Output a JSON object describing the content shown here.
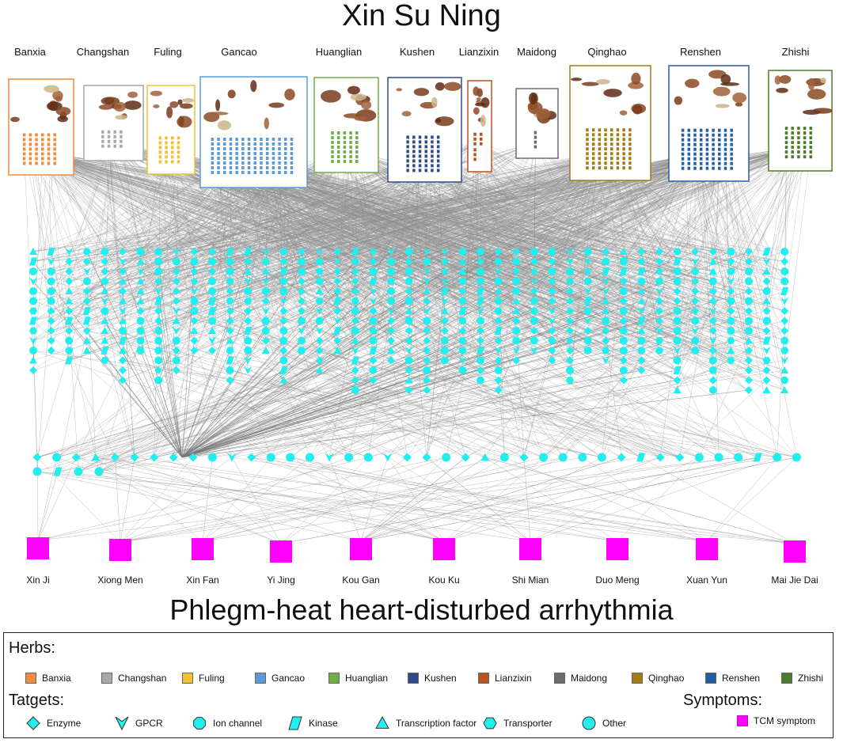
{
  "title": "Xin Su Ning",
  "subtitle": "Phlegm-heat heart-disturbed arrhythmia",
  "herbs": [
    {
      "name": "Banxia",
      "color": "#f08a3c",
      "compounds": 6
    },
    {
      "name": "Changshan",
      "color": "#a9a9a9",
      "compounds": 4
    },
    {
      "name": "Fuling",
      "color": "#f2c12e",
      "compounds": 4
    },
    {
      "name": "Gancao",
      "color": "#5b9bd5",
      "compounds": 14
    },
    {
      "name": "Huanglian",
      "color": "#70ad47",
      "compounds": 5
    },
    {
      "name": "Kushen",
      "color": "#2f4a8a",
      "compounds": 6
    },
    {
      "name": "Lianzixin",
      "color": "#b5541f",
      "compounds": 3
    },
    {
      "name": "Maidong",
      "color": "#6b6b6b",
      "compounds": 1
    },
    {
      "name": "Qinghao",
      "color": "#a07d12",
      "compounds": 8
    },
    {
      "name": "Renshen",
      "color": "#255e9e",
      "compounds": 9
    },
    {
      "name": "Zhishi",
      "color": "#4a7a2c",
      "compounds": 5
    }
  ],
  "symptoms": [
    "Xin Ji",
    "Xiong Men",
    "Xin Fan",
    "Yi Jing",
    "Kou Gan",
    "Kou Ku",
    "Shi Mian",
    "Duo Meng",
    "Xuan Yun",
    "Mai Jie Dai"
  ],
  "legend": {
    "herbs_heading": "Herbs:",
    "targets_heading": "Tatgets:",
    "symptoms_heading": "Symptoms:",
    "targets": [
      {
        "label": "Enzyme",
        "shape": "diamond"
      },
      {
        "label": "GPCR",
        "shape": "vee"
      },
      {
        "label": "Ion channel",
        "shape": "octagon"
      },
      {
        "label": "Kinase",
        "shape": "parallelogram"
      },
      {
        "label": "Transcription factor",
        "shape": "triangle"
      },
      {
        "label": "Transporter",
        "shape": "hexagon"
      },
      {
        "label": "Other",
        "shape": "circle"
      }
    ],
    "symptom_label": "TCM symptom"
  },
  "colors": {
    "target_node": "#22eeee",
    "symptom_node": "#ff00ff",
    "edge": "#8c8c8c"
  }
}
